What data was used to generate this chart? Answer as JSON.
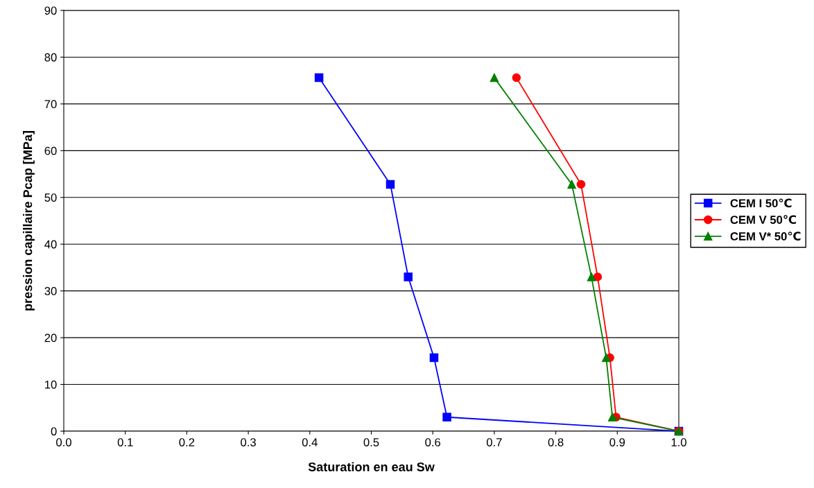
{
  "chart_data": {
    "type": "line",
    "xlabel": "Saturation en eau Sw",
    "ylabel": "pression capillaire Pcap [MPa]",
    "xlim": [
      0,
      1
    ],
    "xticks": [
      {
        "value": 0,
        "label": "0.0"
      },
      0.1,
      0.2,
      0.3,
      0.4,
      0.5,
      0.6,
      0.7,
      0.8,
      0.9,
      {
        "value": 1,
        "label": "1.0"
      }
    ],
    "ylim": [
      0,
      90
    ],
    "yticks": [
      0,
      10,
      20,
      30,
      40,
      50,
      60,
      70,
      80,
      90
    ],
    "grid": "y",
    "legend": "right",
    "series": [
      {
        "name": "CEM I 50℃",
        "color": "#0000ff",
        "marker": "square",
        "x": [
          0.415,
          0.531,
          0.56,
          0.602,
          0.623,
          1.0
        ],
        "values": [
          75.6,
          52.8,
          33.0,
          15.7,
          3.0,
          0
        ]
      },
      {
        "name": "CEM V 50℃",
        "color": "#ff0000",
        "marker": "circle",
        "x": [
          0.736,
          0.841,
          0.868,
          0.888,
          0.898,
          1.0
        ],
        "values": [
          75.6,
          52.8,
          33.0,
          15.7,
          3.0,
          0
        ]
      },
      {
        "name": "CEM V* 50℃",
        "color": "#008000",
        "marker": "triangle",
        "x": [
          0.7,
          0.826,
          0.858,
          0.882,
          0.892,
          1.0
        ],
        "values": [
          75.6,
          52.8,
          33.0,
          15.7,
          3.0,
          0
        ]
      }
    ]
  }
}
